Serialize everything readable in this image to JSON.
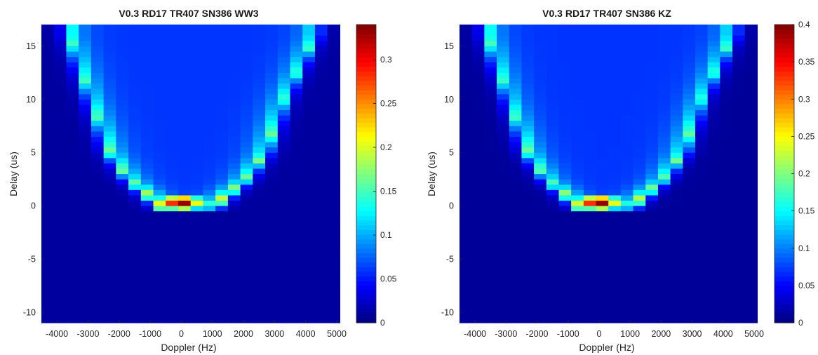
{
  "chart_data": [
    {
      "type": "heatmap",
      "title": "V0.3 RD17 TR407 SN386 WW3",
      "xlabel": "Doppler (Hz)",
      "ylabel": "Delay (us)",
      "xlim": [
        -4500,
        5000
      ],
      "ylim": [
        -11,
        17
      ],
      "x_ticks": [
        -4000,
        -3000,
        -2000,
        -1000,
        0,
        1000,
        2000,
        3000,
        4000,
        5000
      ],
      "y_ticks": [
        -10,
        -5,
        0,
        5,
        10,
        15
      ],
      "colorbar": {
        "limits": [
          0,
          0.34
        ],
        "ticks": [
          0,
          0.05,
          0.1,
          0.15,
          0.2,
          0.25,
          0.3
        ]
      },
      "colormap": "jet",
      "peak": {
        "doppler": 0,
        "delay": 0.3,
        "value": 0.34
      },
      "cell_size": {
        "doppler": 400,
        "delay": 0.5
      },
      "description_values": {
        "floor_value": 0.01,
        "interior_value": 0.06,
        "edge_curve_points": [
          {
            "delay": 0,
            "doppler_left": -700,
            "doppler_right": 1100,
            "value_left": 0.25,
            "value_right": 0.27
          },
          {
            "delay": 2.5,
            "doppler_left": -1700,
            "doppler_right": 2100,
            "value": 0.18
          },
          {
            "delay": 5,
            "doppler_left": -2300,
            "doppler_right": 2700,
            "value": 0.17
          },
          {
            "delay": 10,
            "doppler_left": -2900,
            "doppler_right": 3300,
            "value": 0.15
          },
          {
            "delay": 16,
            "doppler_left": -3600,
            "doppler_right": 4300,
            "value": 0.15
          }
        ]
      }
    },
    {
      "type": "heatmap",
      "title": "V0.3 RD17 TR407 SN386 KZ",
      "xlabel": "Doppler (Hz)",
      "ylabel": "Delay (us)",
      "xlim": [
        -4500,
        5000
      ],
      "ylim": [
        -11,
        17
      ],
      "x_ticks": [
        -4000,
        -3000,
        -2000,
        -1000,
        0,
        1000,
        2000,
        3000,
        4000,
        5000
      ],
      "y_ticks": [
        -10,
        -5,
        0,
        5,
        10,
        15
      ],
      "colorbar": {
        "limits": [
          0,
          0.4
        ],
        "ticks": [
          0,
          0.05,
          0.1,
          0.15,
          0.2,
          0.25,
          0.3,
          0.35,
          0.4
        ]
      },
      "colormap": "jet",
      "peak": {
        "doppler": 0,
        "delay": 0.3,
        "value": 0.4
      },
      "cell_size": {
        "doppler": 400,
        "delay": 0.5
      },
      "description_values": {
        "floor_value": 0.01,
        "interior_value": 0.07,
        "edge_curve_points": [
          {
            "delay": 0,
            "doppler_left": -700,
            "doppler_right": 1100,
            "value_left": 0.28,
            "value_right": 0.31
          },
          {
            "delay": 2.5,
            "doppler_left": -1700,
            "doppler_right": 2100,
            "value": 0.2
          },
          {
            "delay": 5,
            "doppler_left": -2300,
            "doppler_right": 2700,
            "value": 0.2
          },
          {
            "delay": 10,
            "doppler_left": -2900,
            "doppler_right": 3300,
            "value": 0.17
          },
          {
            "delay": 16,
            "doppler_left": -3600,
            "doppler_right": 4300,
            "value": 0.18
          }
        ]
      }
    }
  ]
}
